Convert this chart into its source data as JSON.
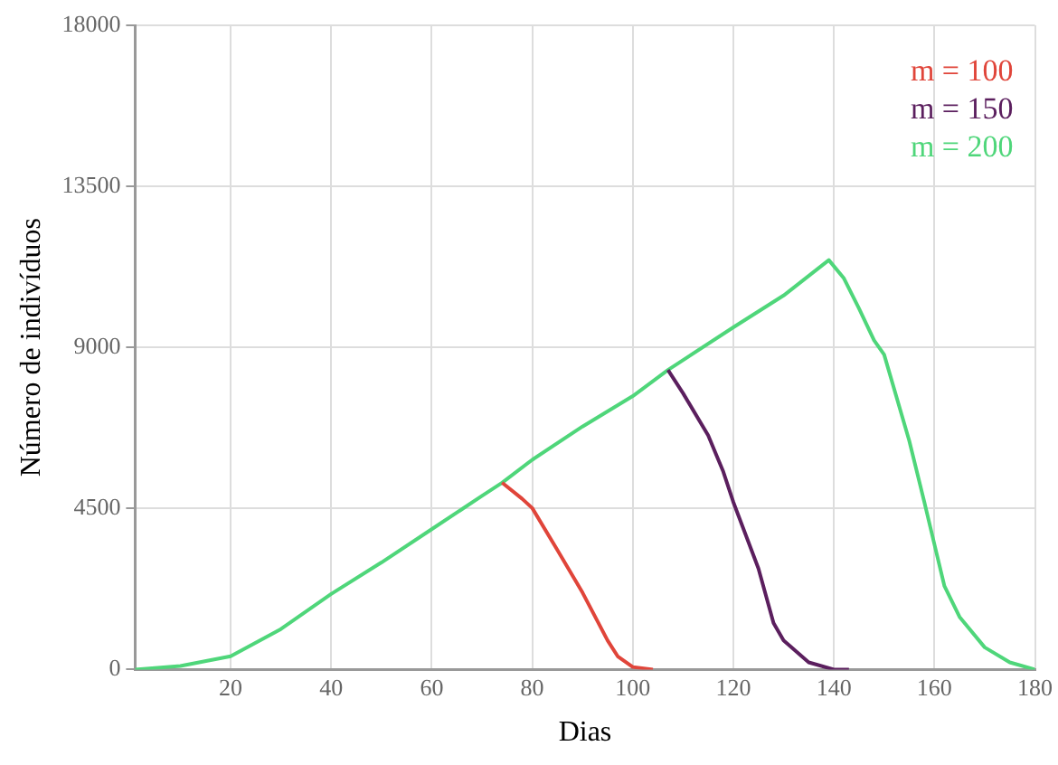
{
  "chart_data": {
    "type": "line",
    "xlabel": "Dias",
    "ylabel": "Número de indivíduos",
    "xlim": [
      1,
      180
    ],
    "xticks": [
      20,
      40,
      60,
      80,
      100,
      120,
      140,
      160,
      180
    ],
    "ylim": [
      0,
      18000
    ],
    "yticks": [
      0,
      4500,
      9000,
      13500,
      18000
    ],
    "grid": true,
    "legend": "top right",
    "marker": "none",
    "line_style": "solid",
    "series": [
      {
        "name": "m = 100",
        "color": "#e0453a",
        "x": [
          74,
          78,
          80,
          85,
          90,
          95,
          97,
          100,
          104
        ],
        "values": [
          5220,
          4770,
          4510,
          3340,
          2150,
          810,
          370,
          70,
          0
        ]
      },
      {
        "name": "m = 150",
        "color": "#5b1f5e",
        "x": [
          107,
          110,
          115,
          118,
          120,
          125,
          128,
          130,
          135,
          140,
          143
        ],
        "values": [
          8370,
          7720,
          6540,
          5530,
          4680,
          2820,
          1300,
          810,
          200,
          0,
          0
        ]
      },
      {
        "name": "m = 200",
        "color": "#4fd67a",
        "x": [
          1,
          10,
          20,
          30,
          40,
          50,
          60,
          70,
          74,
          80,
          90,
          100,
          107,
          120,
          130,
          139,
          142,
          145,
          148,
          150,
          155,
          158,
          160,
          162,
          165,
          170,
          175,
          180
        ],
        "values": [
          0,
          100,
          370,
          1130,
          2110,
          2990,
          3920,
          4850,
          5220,
          5860,
          6790,
          7640,
          8370,
          9560,
          10450,
          11440,
          10930,
          10090,
          9200,
          8800,
          6390,
          4680,
          3500,
          2330,
          1470,
          620,
          200,
          0
        ]
      }
    ]
  }
}
